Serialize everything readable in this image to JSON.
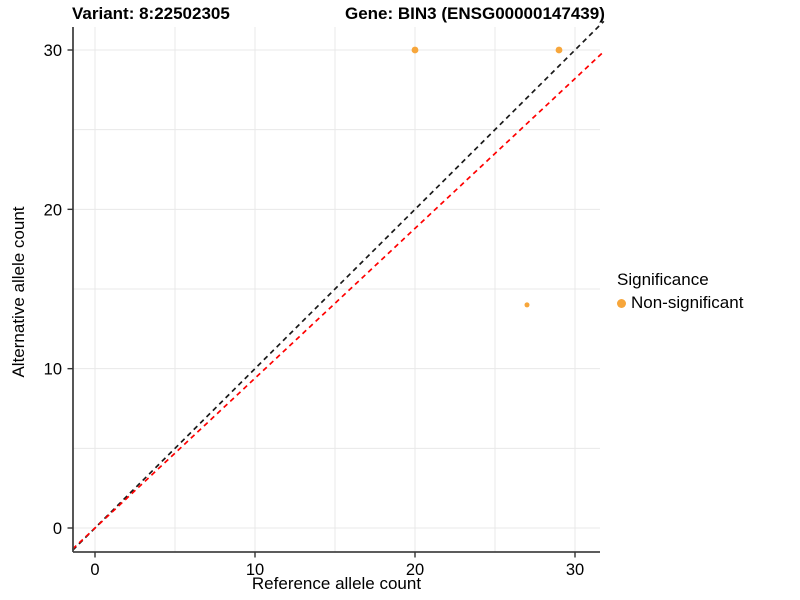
{
  "title": {
    "variant": "Variant: 8:22502305",
    "gene": "Gene: BIN3 (ENSG00000147439)"
  },
  "chart_data": {
    "type": "scatter",
    "xlabel": "Reference allele count",
    "ylabel": "Alternative allele count",
    "x_ticks": [
      0,
      10,
      20,
      30
    ],
    "y_ticks": [
      0,
      10,
      20,
      30
    ],
    "x_minor": [
      5,
      15,
      25
    ],
    "y_minor": [
      5,
      15,
      25
    ],
    "xlim": [
      -1.5,
      31.6
    ],
    "ylim": [
      -1.5,
      31.5
    ],
    "grid": true,
    "background": "#ffffff",
    "gridline_color": "#e8e8e8",
    "axis_color": "#444444",
    "series": [
      {
        "name": "Non-significant",
        "color": "#F7A63B",
        "points": [
          {
            "x": 20,
            "y": 30,
            "size": 3.4
          },
          {
            "x": 29,
            "y": 30,
            "size": 3.4
          },
          {
            "x": 27,
            "y": 14,
            "size": 2.5
          }
        ]
      }
    ],
    "lines": [
      {
        "name": "identity-line",
        "color": "#1A1A1A",
        "dash": "5,4",
        "slope": 1.0,
        "x1": -1.4,
        "y1": -1.4,
        "x2": 31.8,
        "y2": 31.8
      },
      {
        "name": "ratio-line",
        "color": "#FF0000",
        "dash": "5,4",
        "slope": 0.94,
        "x1": -1.4,
        "y1": -1.32,
        "x2": 31.8,
        "y2": 29.9
      }
    ],
    "legend": {
      "title": "Significance",
      "position": "right",
      "items": [
        {
          "label": "Non-significant",
          "color": "#F7A63B"
        }
      ]
    }
  }
}
